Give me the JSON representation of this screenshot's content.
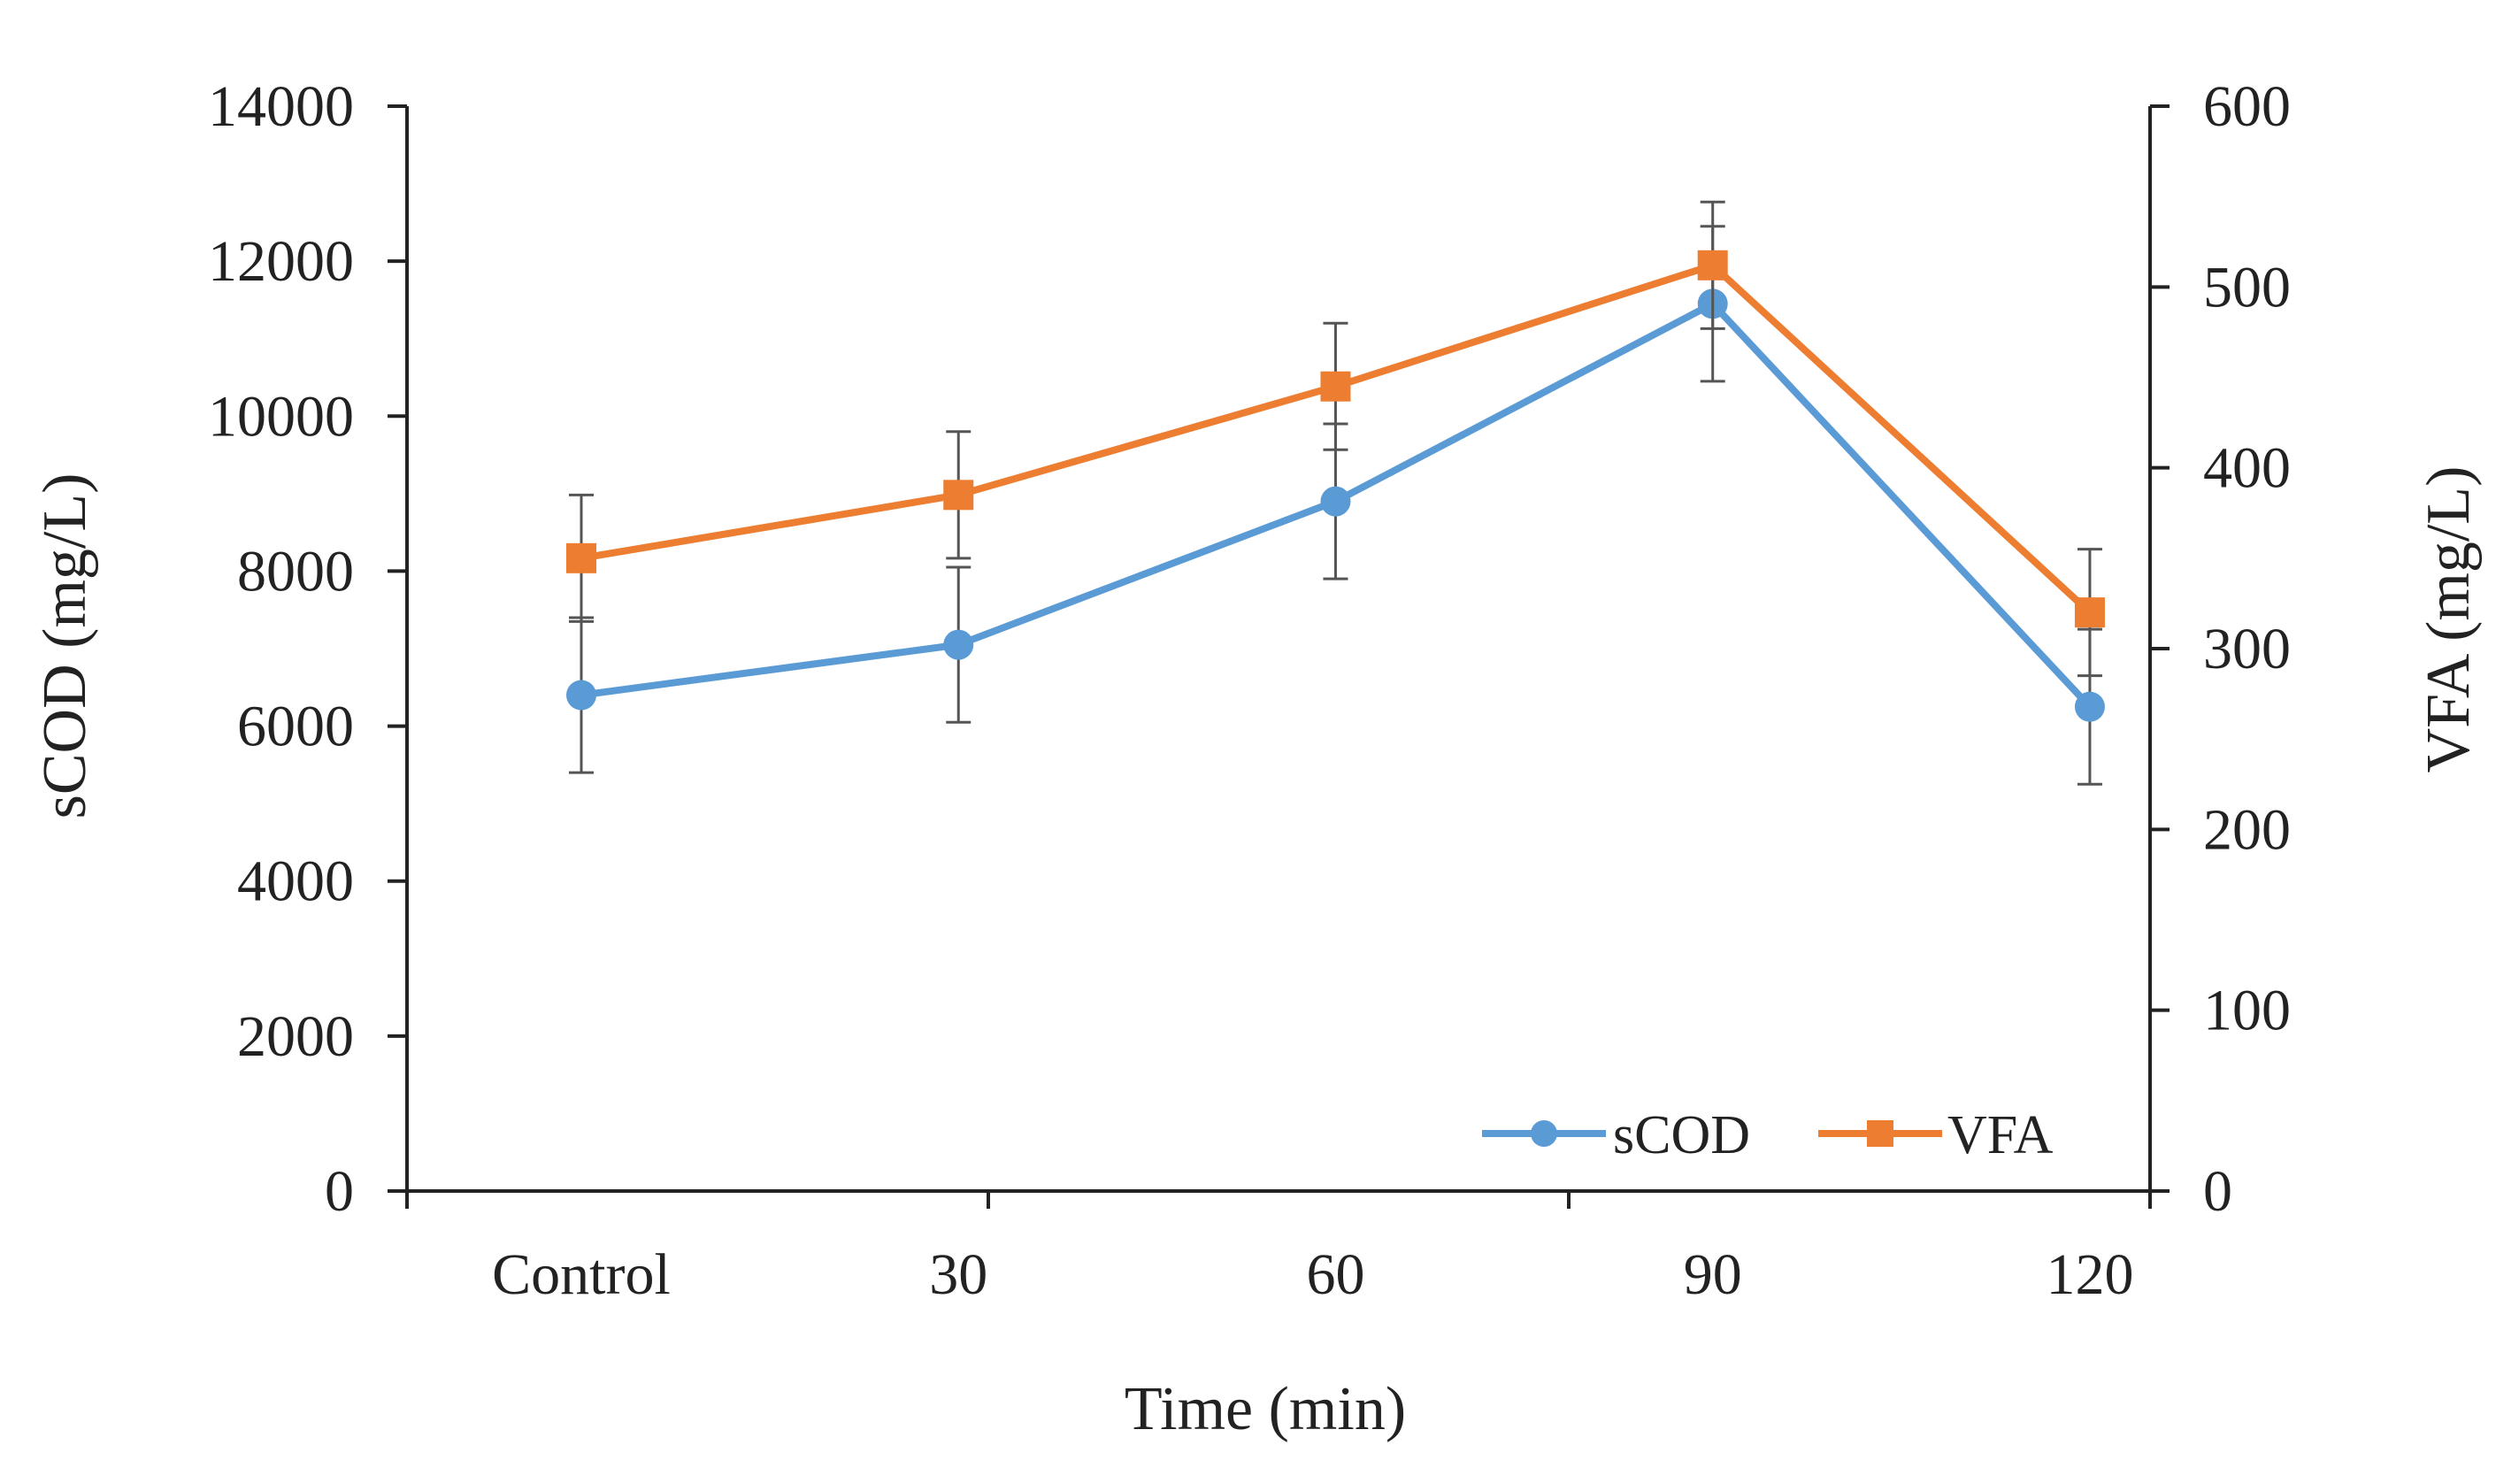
{
  "chart_data": {
    "type": "line",
    "title": "",
    "xlabel": "Time (min)",
    "ylabel": "sCOD (mg/L)",
    "y2label": "VFA (mg/L)",
    "categories": [
      "Control",
      "30",
      "60",
      "90",
      "120"
    ],
    "ylim": [
      0,
      14000
    ],
    "y2lim": [
      0,
      600
    ],
    "yticks": [
      "0",
      "2000",
      "4000",
      "6000",
      "8000",
      "10000",
      "12000",
      "14000"
    ],
    "y2ticks": [
      "0",
      "100",
      "200",
      "300",
      "400",
      "500",
      "600"
    ],
    "legend_position": "bottom-right",
    "series": [
      {
        "name": "sCOD",
        "axis": "left",
        "color": "#5B9BD5",
        "marker": "circle",
        "values": [
          6400,
          7050,
          8900,
          11450,
          6250
        ],
        "errors": [
          1000,
          1000,
          1000,
          1000,
          1000
        ]
      },
      {
        "name": "VFA",
        "axis": "right",
        "color": "#ED7D31",
        "marker": "square",
        "values": [
          350,
          385,
          445,
          512,
          320
        ],
        "errors": [
          35,
          35,
          35,
          35,
          35
        ]
      }
    ]
  }
}
